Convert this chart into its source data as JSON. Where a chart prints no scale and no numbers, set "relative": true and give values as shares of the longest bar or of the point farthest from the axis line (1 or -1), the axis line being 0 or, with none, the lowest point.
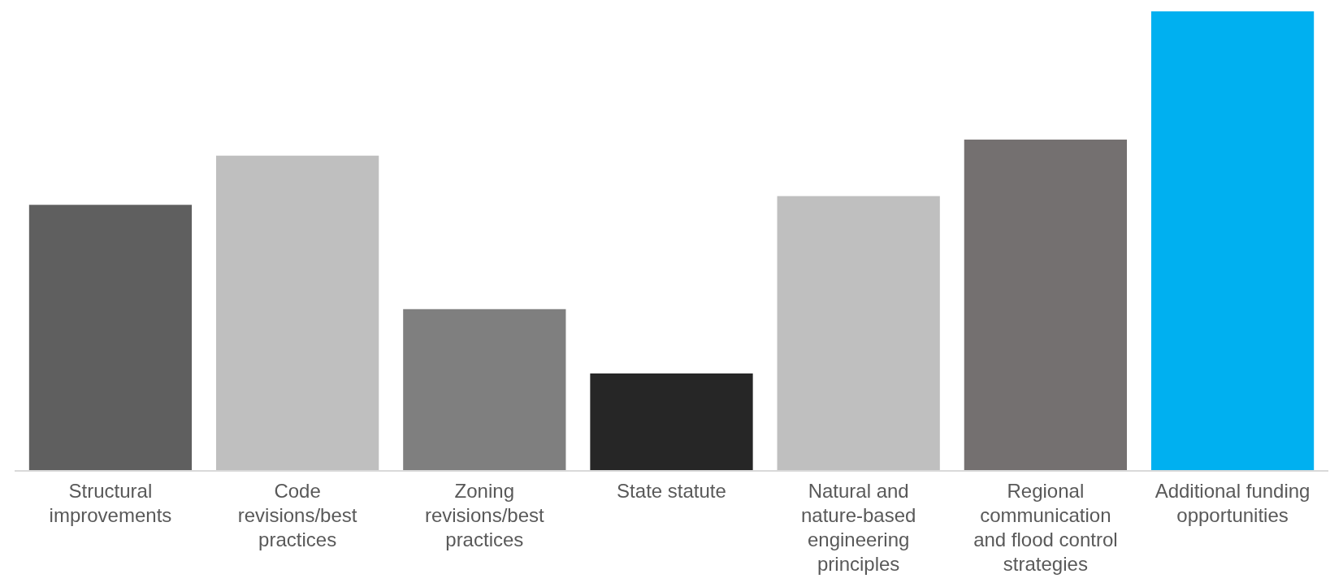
{
  "chart_data": {
    "type": "bar",
    "relative": true,
    "categories": [
      "Structural improvements",
      "Code revisions/best practices",
      "Zoning revisions/best practices",
      "State statute",
      "Natural and nature-based engineering principles",
      "Regional communication and flood control strategies",
      "Additional funding opportunities"
    ],
    "values": [
      0.579,
      0.686,
      0.352,
      0.212,
      0.598,
      0.721,
      1
    ],
    "colors": [
      "#5f5f5f",
      "#bfbfbf",
      "#7f7f7f",
      "#262626",
      "#bfbfbf",
      "#747070",
      "#00b0f0"
    ]
  }
}
